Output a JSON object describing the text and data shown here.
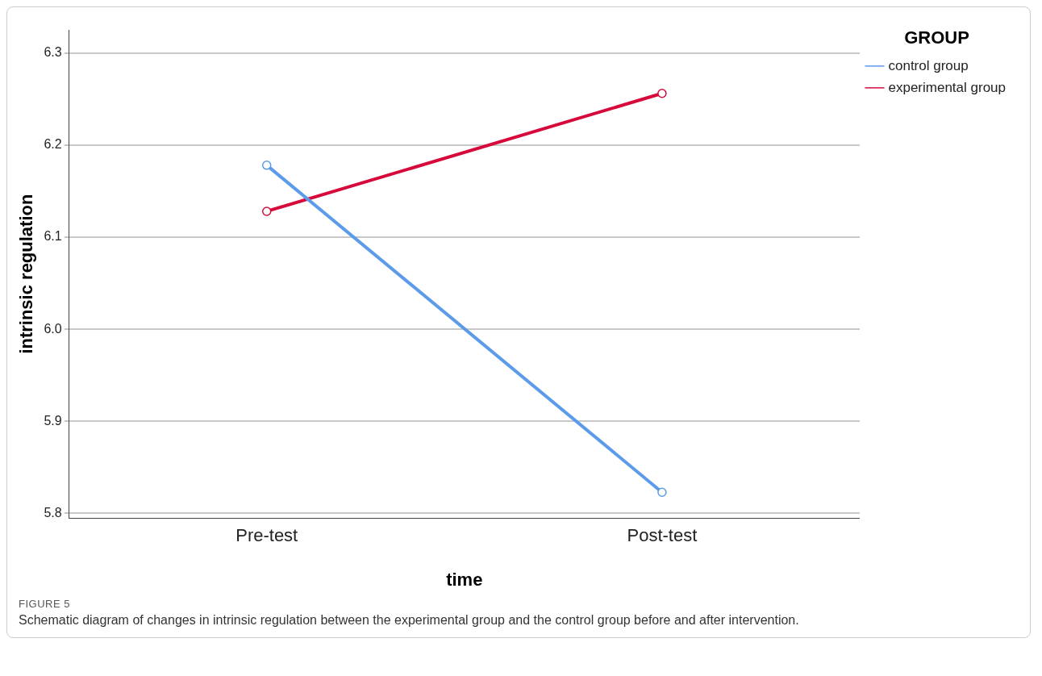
{
  "chart_data": {
    "type": "line",
    "xlabel": "time",
    "ylabel": "intrinsic regulation",
    "legend_title": "GROUP",
    "categories": [
      "Pre-test",
      "Post-test"
    ],
    "series": [
      {
        "name": "control group",
        "color": "#5b9bea",
        "values": [
          6.178,
          5.823
        ]
      },
      {
        "name": "experimental group",
        "color": "#d6093a",
        "values": [
          6.128,
          6.256
        ]
      }
    ],
    "ylim": [
      5.795,
      6.325
    ],
    "yticks": [
      5.8,
      5.9,
      {
        "value": 6,
        "label": "6.0"
      },
      6.1,
      6.2,
      6.3
    ],
    "grid": "y",
    "legend": "top right",
    "marker": "circle",
    "line_style": "solid",
    "annotations": [
      "FIGURE 5",
      "Schematic diagram of changes in intrinsic regulation between the experimental group and the control group before and after intervention."
    ]
  }
}
